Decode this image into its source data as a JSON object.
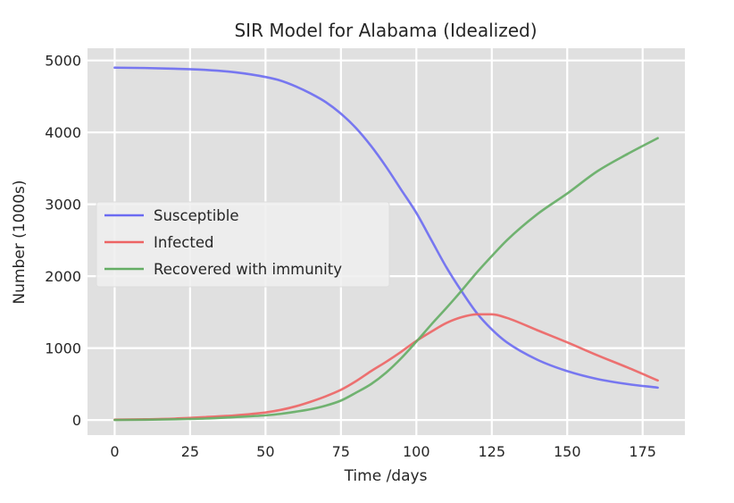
{
  "chart_data": {
    "type": "line",
    "title": "SIR Model for Alabama (Idealized)",
    "xlabel": "Time /days",
    "ylabel": "Number (1000s)",
    "xlim": [
      -9,
      189
    ],
    "ylim": [
      -210,
      5170
    ],
    "xticks": [
      0,
      25,
      50,
      75,
      100,
      125,
      150,
      175
    ],
    "yticks": [
      0,
      1000,
      2000,
      3000,
      4000,
      5000
    ],
    "grid": true,
    "legend_position": "center-left",
    "series": [
      {
        "name": "Susceptible",
        "color": "#6b6bf2",
        "x": [
          0,
          10,
          20,
          30,
          40,
          50,
          55,
          60,
          65,
          70,
          75,
          80,
          85,
          90,
          95,
          100,
          105,
          110,
          115,
          120,
          125,
          130,
          140,
          150,
          160,
          170,
          180
        ],
        "y": [
          4900,
          4895,
          4885,
          4870,
          4835,
          4770,
          4720,
          4640,
          4540,
          4420,
          4260,
          4060,
          3810,
          3520,
          3200,
          2880,
          2500,
          2120,
          1790,
          1490,
          1260,
          1080,
          840,
          680,
          570,
          500,
          450
        ]
      },
      {
        "name": "Infected",
        "color": "#ed6464",
        "x": [
          0,
          10,
          20,
          30,
          40,
          50,
          55,
          60,
          65,
          70,
          75,
          80,
          85,
          90,
          95,
          100,
          105,
          110,
          115,
          120,
          125,
          130,
          140,
          150,
          160,
          170,
          180
        ],
        "y": [
          5,
          10,
          20,
          40,
          65,
          105,
          140,
          190,
          255,
          330,
          420,
          540,
          680,
          810,
          950,
          1100,
          1230,
          1350,
          1430,
          1470,
          1470,
          1420,
          1250,
          1080,
          900,
          730,
          550
        ]
      },
      {
        "name": "Recovered with immunity",
        "color": "#64ad64",
        "x": [
          0,
          10,
          20,
          30,
          40,
          50,
          55,
          60,
          65,
          70,
          75,
          80,
          85,
          90,
          95,
          100,
          105,
          110,
          115,
          120,
          125,
          130,
          140,
          150,
          160,
          170,
          180
        ],
        "y": [
          0,
          3,
          10,
          20,
          40,
          65,
          85,
          115,
          150,
          200,
          270,
          380,
          500,
          660,
          860,
          1090,
          1330,
          1560,
          1800,
          2050,
          2280,
          2500,
          2860,
          3150,
          3460,
          3700,
          3920
        ]
      }
    ]
  }
}
